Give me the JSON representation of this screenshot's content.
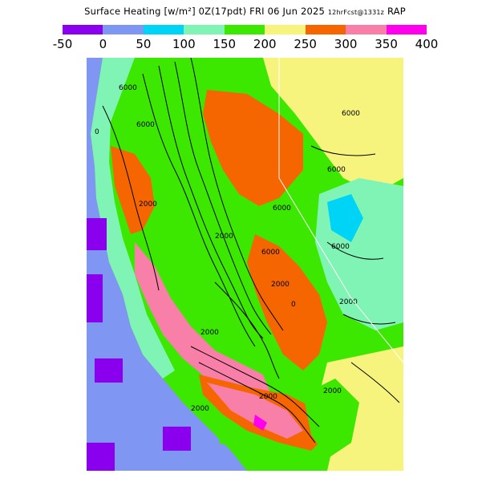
{
  "title": {
    "main": "Surface Heating [w/m²] 0Z(17pdt) FRI 06 Jun 2025",
    "fcst": "12hrFcst@1331z",
    "model": "RAP"
  },
  "legend": {
    "ticks": [
      "-50",
      "0",
      "50",
      "100",
      "150",
      "200",
      "250",
      "300",
      "350",
      "400"
    ],
    "colors": [
      "#8a00ee",
      "#7f96f2",
      "#00d4f6",
      "#80f4b4",
      "#3ce800",
      "#f6f47c",
      "#f56500",
      "#f77fa8",
      "#ff00ee"
    ]
  },
  "map": {
    "ocean_color": "#7f96f2",
    "contour_labels": [
      "6000",
      "6000",
      "6000",
      "6000",
      "6000",
      "6000",
      "6000",
      "2000",
      "2000",
      "2000",
      "2000",
      "2000",
      "2000",
      "2000",
      "2000",
      "0",
      "0"
    ]
  }
}
